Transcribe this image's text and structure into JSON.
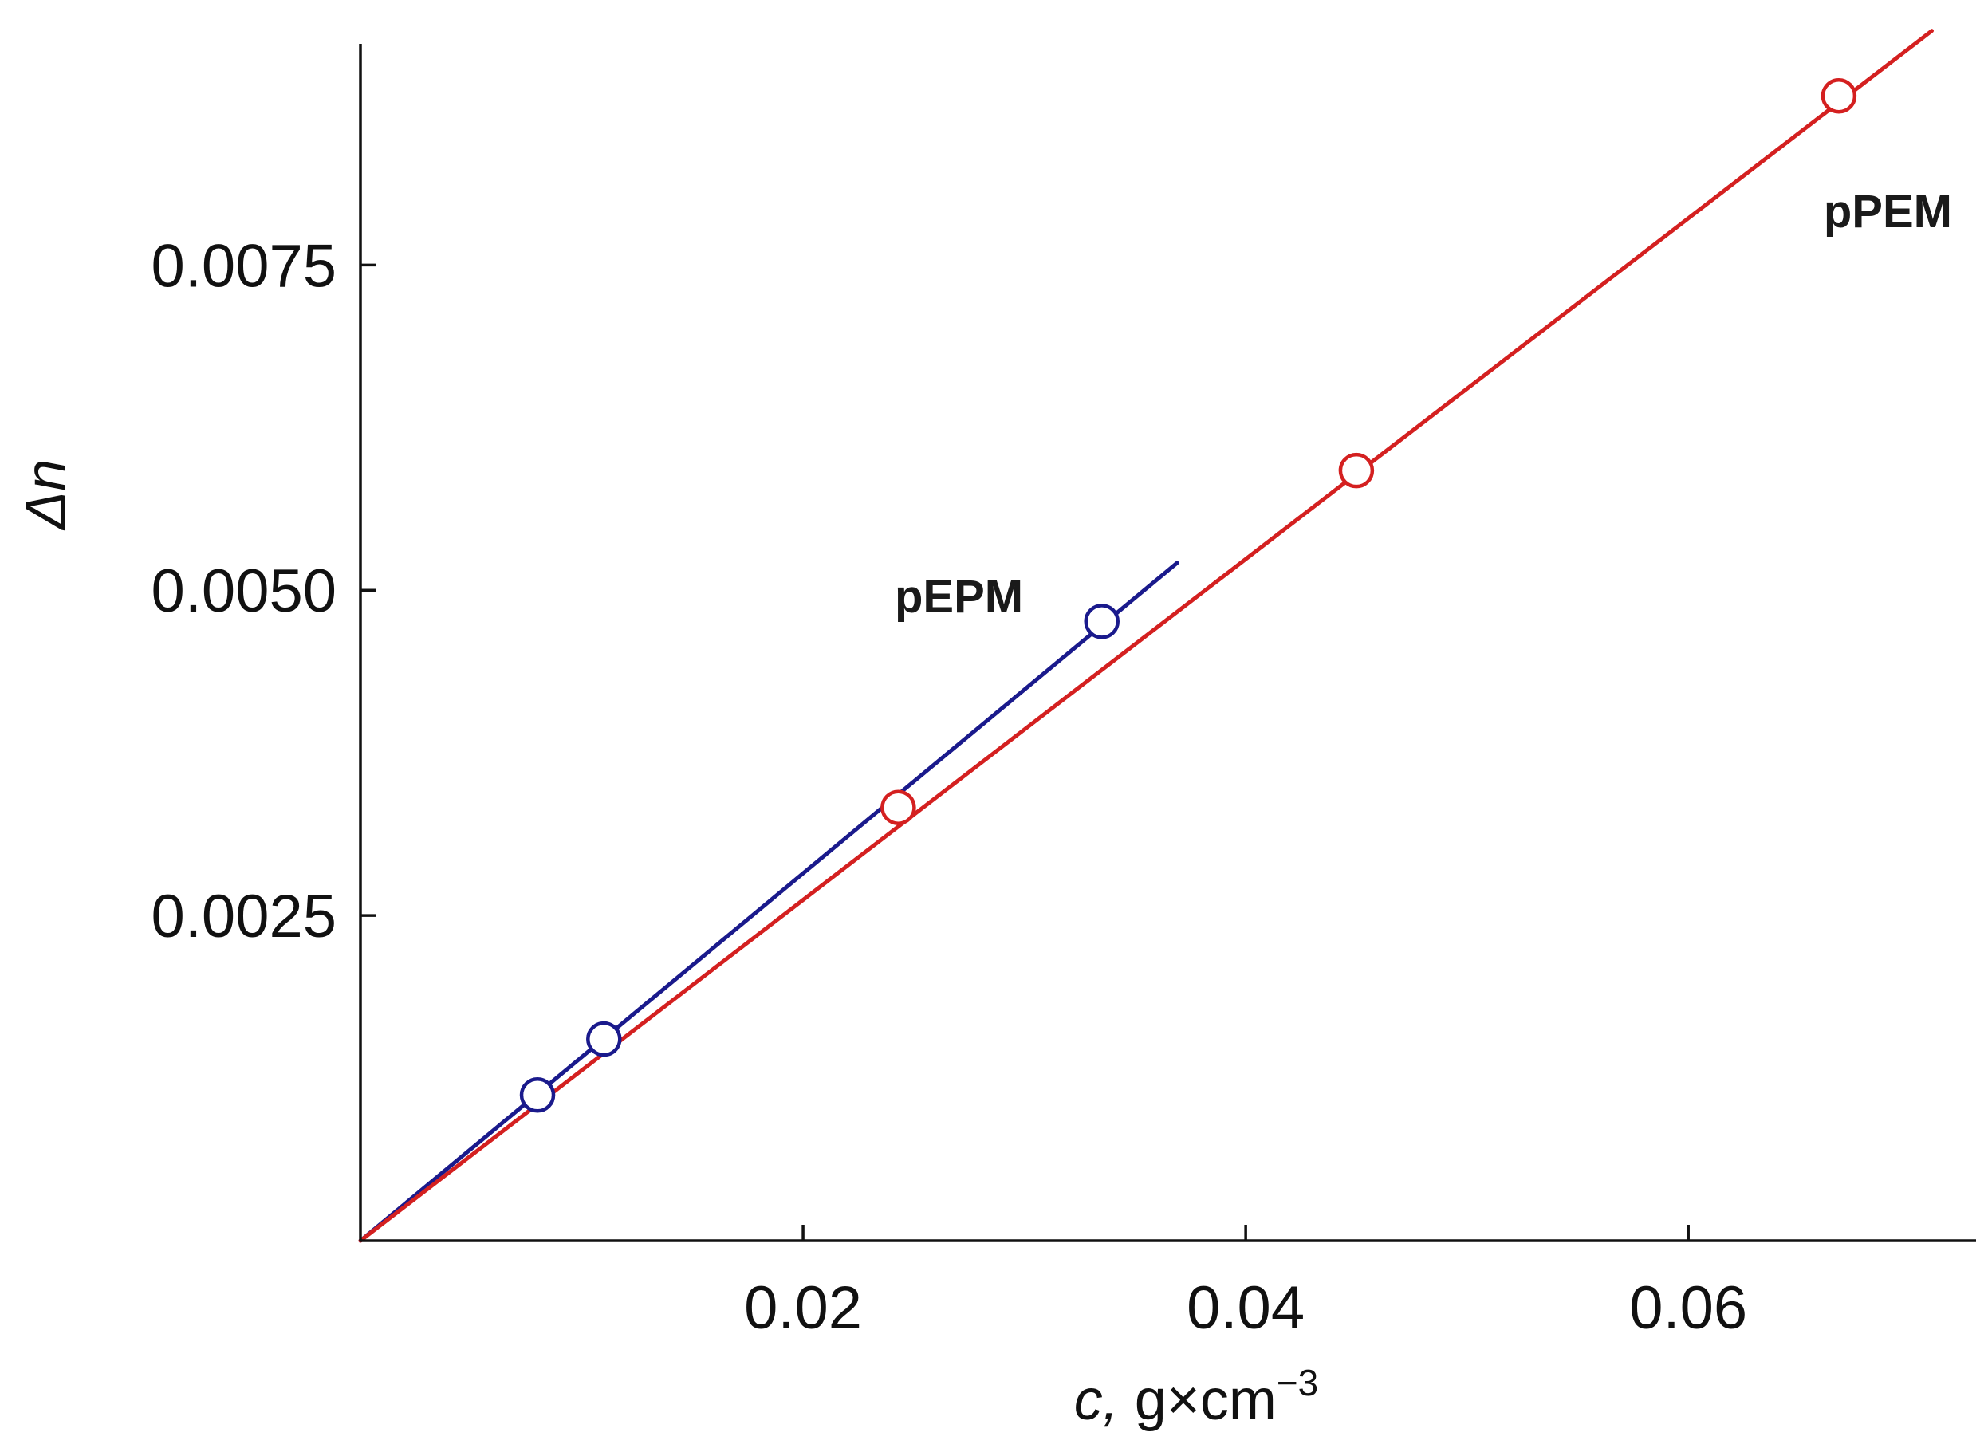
{
  "chart_data": {
    "type": "scatter",
    "title": "",
    "xlabel": {
      "var": "c,",
      "unit": " g×cm",
      "exp": "−3"
    },
    "ylabel": {
      "delta": "Δ",
      "var": "n"
    },
    "xlim": [
      0,
      0.073
    ],
    "ylim": [
      0,
      0.0092
    ],
    "x_ticks": [
      {
        "value": 0.02,
        "label": "0.02"
      },
      {
        "value": 0.04,
        "label": "0.04"
      },
      {
        "value": 0.06,
        "label": "0.06"
      }
    ],
    "y_ticks": [
      {
        "value": 0.0025,
        "label": "0.0025"
      },
      {
        "value": 0.005,
        "label": "0.0050"
      },
      {
        "value": 0.0075,
        "label": "0.0075"
      }
    ],
    "grid": false,
    "series": [
      {
        "name": "pEPM",
        "color": "#1a1a8c",
        "points": [
          {
            "x": 0.008,
            "y": 0.00112
          },
          {
            "x": 0.011,
            "y": 0.00155
          },
          {
            "x": 0.0335,
            "y": 0.00476
          }
        ],
        "fit_line": [
          [
            0,
            0
          ],
          [
            0.0369,
            0.00521
          ]
        ]
      },
      {
        "name": "pPEM",
        "color": "#d42020",
        "points": [
          {
            "x": 0.0243,
            "y": 0.00333
          },
          {
            "x": 0.045,
            "y": 0.00592
          },
          {
            "x": 0.0668,
            "y": 0.0088
          }
        ],
        "fit_line": [
          [
            0,
            0
          ],
          [
            0.071,
            0.0093
          ]
        ]
      }
    ]
  }
}
